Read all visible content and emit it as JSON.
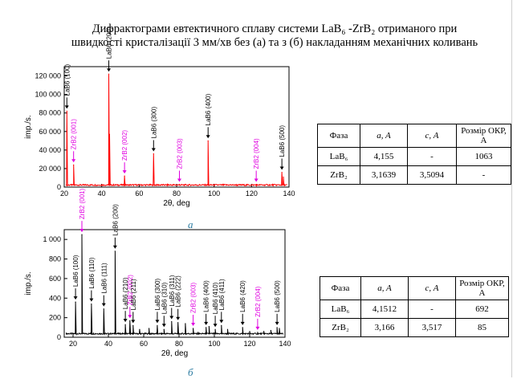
{
  "title": {
    "line1": "Дифрактограми евтектичного сплаву системи LaB₆ -ZrB₂ отриманого при",
    "line2": "швидкості кристалізації 3 мм/хв без (a) та з (б) накладанням механічних коливань"
  },
  "captions": {
    "a": "a",
    "b": "б"
  },
  "chart_data": [
    {
      "type": "line",
      "id": "a",
      "xlabel": "2θ, deg",
      "ylabel": "imp./s.",
      "xlim": [
        20,
        140
      ],
      "ylim": [
        0,
        130000
      ],
      "xticks": [
        20,
        40,
        60,
        80,
        100,
        120,
        140
      ],
      "yticks": [
        0,
        20000,
        40000,
        60000,
        80000,
        100000,
        120000
      ],
      "grid": false,
      "series": [
        {
          "color": "#ff0000",
          "baseline": 1500,
          "peaks": [
            {
              "x": 21.4,
              "y": 82000
            },
            {
              "x": 25.0,
              "y": 24000
            },
            {
              "x": 30.4,
              "y": 2500
            },
            {
              "x": 37.4,
              "y": 2000
            },
            {
              "x": 43.8,
              "y": 122000
            },
            {
              "x": 44.2,
              "y": 57000
            },
            {
              "x": 52.2,
              "y": 12000
            },
            {
              "x": 67.7,
              "y": 36000
            },
            {
              "x": 81.5,
              "y": 3000
            },
            {
              "x": 96.8,
              "y": 50000
            },
            {
              "x": 122.5,
              "y": 3000
            },
            {
              "x": 136.2,
              "y": 16000
            },
            {
              "x": 137.0,
              "y": 11000
            }
          ]
        }
      ],
      "annotations": [
        {
          "label": "LaB6 (100)",
          "x": 21.4,
          "y": 82000,
          "color": "#000000"
        },
        {
          "label": "ZrB2 (001)",
          "x": 25.0,
          "y": 24000,
          "color": "#e000e0"
        },
        {
          "label": "LaB6 (200)",
          "x": 43.8,
          "y": 122000,
          "color": "#000000"
        },
        {
          "label": "ZrB2 (002)",
          "x": 52.2,
          "y": 12000,
          "color": "#e000e0"
        },
        {
          "label": "LaB6 (300)",
          "x": 67.7,
          "y": 36000,
          "color": "#000000"
        },
        {
          "label": "ZrB2 (003)",
          "x": 81.5,
          "y": 3000,
          "color": "#e000e0"
        },
        {
          "label": "LaB6 (400)",
          "x": 96.8,
          "y": 50000,
          "color": "#000000"
        },
        {
          "label": "ZrB2 (004)",
          "x": 122.5,
          "y": 3000,
          "color": "#e000e0"
        },
        {
          "label": "LaB6 (500)",
          "x": 136.2,
          "y": 16000,
          "color": "#000000"
        }
      ]
    },
    {
      "type": "line",
      "id": "b",
      "xlabel": "2θ, deg",
      "ylabel": "imp./s.",
      "xlim": [
        15,
        140
      ],
      "ylim": [
        0,
        1100
      ],
      "xticks": [
        20,
        40,
        60,
        80,
        100,
        120,
        140
      ],
      "yticks": [
        0,
        200,
        400,
        600,
        800,
        1000
      ],
      "grid": false,
      "series": [
        {
          "color": "#000000",
          "baseline": 30,
          "peaks": [
            {
              "x": 21.4,
              "y": 360
            },
            {
              "x": 25.0,
              "y": 1050
            },
            {
              "x": 30.4,
              "y": 340
            },
            {
              "x": 37.4,
              "y": 290
            },
            {
              "x": 43.8,
              "y": 880
            },
            {
              "x": 49.6,
              "y": 130
            },
            {
              "x": 52.2,
              "y": 170
            },
            {
              "x": 54.0,
              "y": 120
            },
            {
              "x": 57.7,
              "y": 80
            },
            {
              "x": 63.0,
              "y": 90
            },
            {
              "x": 67.7,
              "y": 120
            },
            {
              "x": 71.5,
              "y": 80
            },
            {
              "x": 75.8,
              "y": 160
            },
            {
              "x": 79.4,
              "y": 150
            },
            {
              "x": 83.6,
              "y": 140
            },
            {
              "x": 88.0,
              "y": 90
            },
            {
              "x": 90.8,
              "y": 50
            },
            {
              "x": 95.3,
              "y": 100
            },
            {
              "x": 97.0,
              "y": 110
            },
            {
              "x": 100.5,
              "y": 80
            },
            {
              "x": 104.0,
              "y": 120
            },
            {
              "x": 107.5,
              "y": 80
            },
            {
              "x": 116.0,
              "y": 100
            },
            {
              "x": 120.0,
              "y": 60
            },
            {
              "x": 124.5,
              "y": 50
            },
            {
              "x": 128.0,
              "y": 60
            },
            {
              "x": 132.0,
              "y": 70
            },
            {
              "x": 135.5,
              "y": 100
            },
            {
              "x": 136.8,
              "y": 90
            }
          ]
        }
      ],
      "annotations": [
        {
          "label": "LaB6 (100)",
          "x": 21.4,
          "y": 360,
          "color": "#000000"
        },
        {
          "label": "ZrB2 (001)",
          "x": 25.0,
          "y": 1050,
          "color": "#e000e0"
        },
        {
          "label": "LaB6 (110)",
          "x": 30.4,
          "y": 340,
          "color": "#000000"
        },
        {
          "label": "LaB6 (111)",
          "x": 37.4,
          "y": 290,
          "color": "#000000"
        },
        {
          "label": "LaB6 (200)",
          "x": 43.8,
          "y": 880,
          "color": "#000000"
        },
        {
          "label": "LaB6 (210)",
          "x": 49.6,
          "y": 130,
          "color": "#000000"
        },
        {
          "label": "ZrB2 (002)",
          "x": 52.2,
          "y": 170,
          "color": "#e000e0"
        },
        {
          "label": "LaB6 (211)",
          "x": 54.0,
          "y": 120,
          "color": "#000000"
        },
        {
          "label": "LaB6 (300)",
          "x": 67.7,
          "y": 120,
          "color": "#000000"
        },
        {
          "label": "LaB6 (310)",
          "x": 71.5,
          "y": 80,
          "color": "#000000"
        },
        {
          "label": "LaB6 (311)",
          "x": 75.8,
          "y": 160,
          "color": "#000000"
        },
        {
          "label": "LaB6 (222)",
          "x": 79.4,
          "y": 150,
          "color": "#000000"
        },
        {
          "label": "ZrB2 (003)",
          "x": 88.0,
          "y": 90,
          "color": "#e000e0"
        },
        {
          "label": "LaB6 (400)",
          "x": 95.3,
          "y": 100,
          "color": "#000000"
        },
        {
          "label": "LaB6 (410)",
          "x": 100.5,
          "y": 80,
          "color": "#000000"
        },
        {
          "label": "LaB6 (411)",
          "x": 104.0,
          "y": 120,
          "color": "#000000"
        },
        {
          "label": "LaB6 (420)",
          "x": 116.0,
          "y": 100,
          "color": "#000000"
        },
        {
          "label": "ZrB2 (004)",
          "x": 124.5,
          "y": 50,
          "color": "#e000e0"
        },
        {
          "label": "LaB6 (500)",
          "x": 135.5,
          "y": 100,
          "color": "#000000"
        }
      ]
    }
  ],
  "table_a": {
    "headers": [
      "Фаза",
      "a, A",
      "c, A",
      "Розмір ОКР, A"
    ],
    "rows": [
      [
        "LaB₆",
        "4,155",
        "-",
        "1063"
      ],
      [
        "ZrB₂",
        "3,1639",
        "3,5094",
        "-"
      ]
    ]
  },
  "table_b": {
    "headers": [
      "Фаза",
      "a, A",
      "c, A",
      "Розмір ОКР, A"
    ],
    "rows": [
      [
        "LaB₆",
        "4,1512",
        "-",
        "692"
      ],
      [
        "ZrB₂",
        "3,166",
        "3,517",
        "85"
      ]
    ]
  }
}
